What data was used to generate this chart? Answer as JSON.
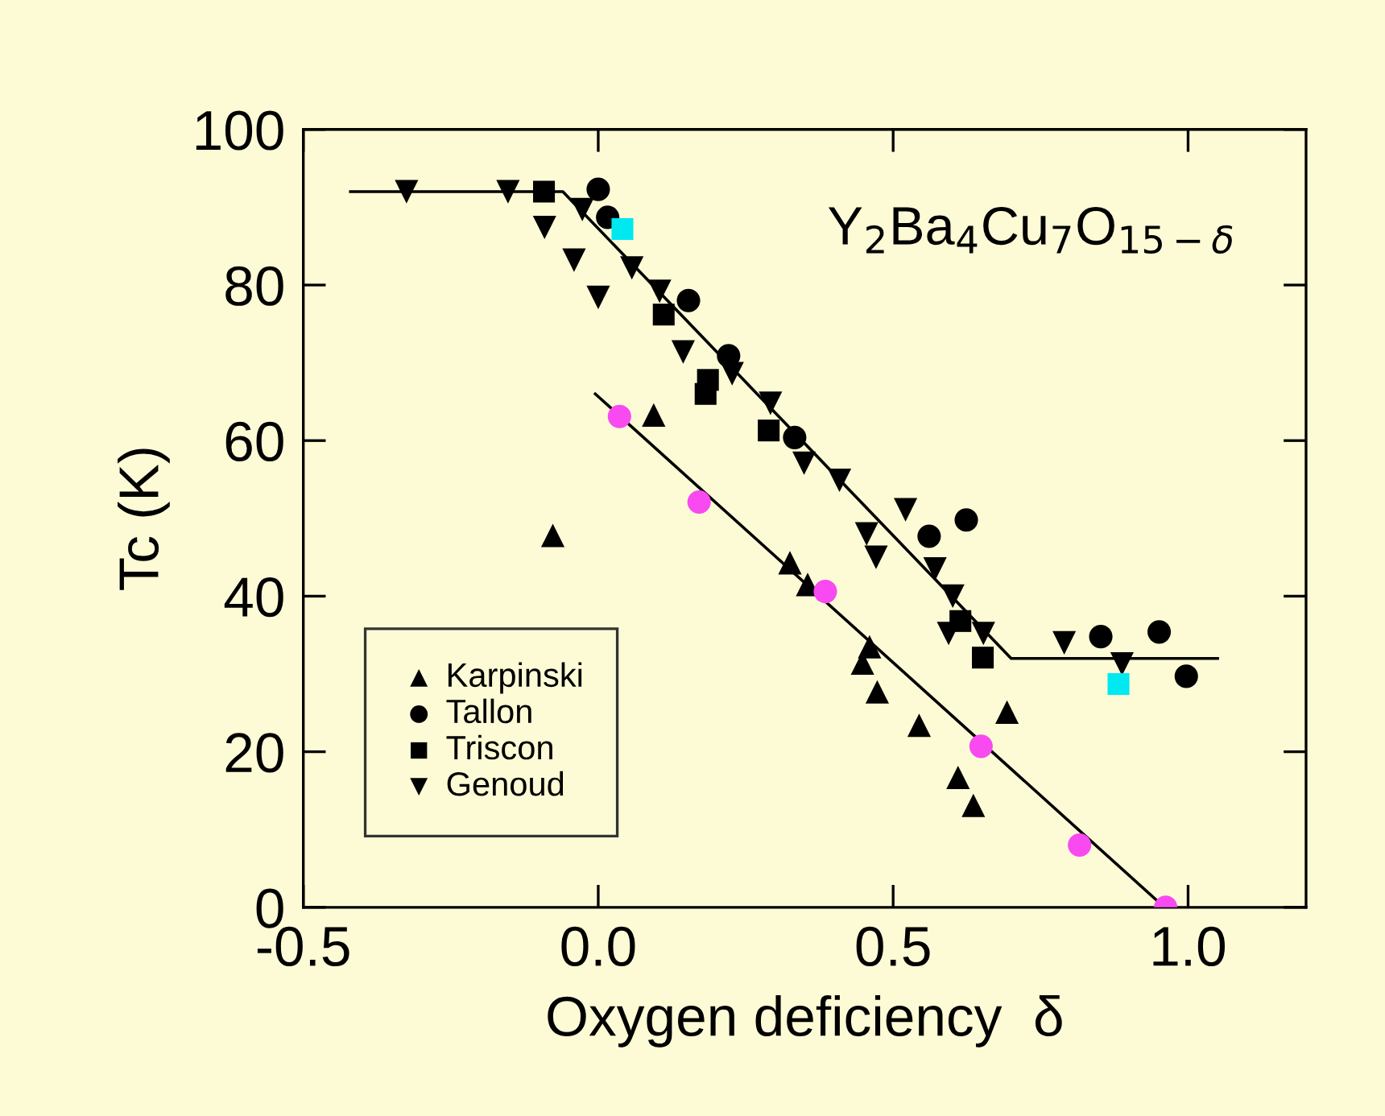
{
  "chart_data": {
    "type": "scatter",
    "xlabel": "Oxygen deficiency  δ",
    "ylabel": "Tc (K)",
    "annotations": [
      "Y$_{2}$Ba$_{4}$Cu$_{7}$O$_{15−δ}$"
    ],
    "xlim": [
      -0.5,
      1.2
    ],
    "ylim": [
      0,
      100
    ],
    "xticks": [
      {
        "value": -0.5,
        "label": "-0.5"
      },
      {
        "value": 0,
        "label": "0.0"
      },
      {
        "value": 0.5,
        "label": "0.5"
      },
      {
        "value": 1.0,
        "label": "1.0"
      }
    ],
    "yticks": [
      0,
      20,
      40,
      60,
      80,
      100
    ],
    "grid": false,
    "legend": "bottom left",
    "series": [
      {
        "type": "line",
        "color": "#000000",
        "marker": "none",
        "x": [
          -0.42,
          -0.06,
          0.7,
          1.05
        ],
        "values": [
          92,
          92,
          32,
          32
        ]
      },
      {
        "type": "line",
        "color": "#000000",
        "marker": "none",
        "x": [
          -0.005,
          0.96
        ],
        "values": [
          66,
          0
        ]
      },
      {
        "name": "Karpinski",
        "color": "#000000",
        "marker": "triangle",
        "x": [
          -0.077,
          0.094,
          0.325,
          0.355,
          0.46,
          0.448,
          0.473,
          0.544,
          0.61,
          0.636,
          0.693
        ],
        "values": [
          47.8,
          63.3,
          44.3,
          41.5,
          33.5,
          31.4,
          27.7,
          23.4,
          16.7,
          13.1,
          25.1
        ]
      },
      {
        "name": "Tallon",
        "color": "#000000",
        "marker": "circle",
        "x": [
          0,
          0.016,
          0.153,
          0.221,
          0.333,
          0.561,
          0.624,
          0.852,
          0.951,
          0.997
        ],
        "values": [
          92.3,
          88.7,
          78,
          70.9,
          60.4,
          47.7,
          49.8,
          34.8,
          35.4,
          29.7
        ]
      },
      {
        "name": "Triscon",
        "color": "#000000",
        "marker": "square",
        "x": [
          -0.092,
          0.111,
          0.182,
          0.186,
          0.289,
          0.614,
          0.652
        ],
        "values": [
          92,
          76.2,
          66,
          67.8,
          61.3,
          36.8,
          32.1
        ]
      },
      {
        "name": "Genoud",
        "color": "#000000",
        "marker": "triangle_down",
        "x": [
          -0.325,
          -0.153,
          -0.091,
          -0.041,
          -0.027,
          0,
          0.057,
          0.104,
          0.144,
          0.227,
          0.292,
          0.349,
          0.409,
          0.455,
          0.471,
          0.521,
          0.571,
          0.601,
          0.594,
          0.653,
          0.79,
          0.888
        ],
        "values": [
          92,
          92,
          87.4,
          83.2,
          89.7,
          78.4,
          82.2,
          79.2,
          71.4,
          68.6,
          64.8,
          57.1,
          54.9,
          48,
          45,
          51.1,
          43.5,
          40,
          35.2,
          35.2,
          34,
          31.3
        ]
      },
      {
        "color": "#00e8f0",
        "marker": "square",
        "x": [
          0.041,
          0.882
        ],
        "values": [
          87.2,
          28.7
        ]
      },
      {
        "color": "#f84af0",
        "marker": "circle",
        "x": [
          0.036,
          0.171,
          0.385,
          0.649,
          0.816,
          0.962
        ],
        "values": [
          63.1,
          52.1,
          40.6,
          20.7,
          8.0,
          0
        ]
      }
    ]
  }
}
